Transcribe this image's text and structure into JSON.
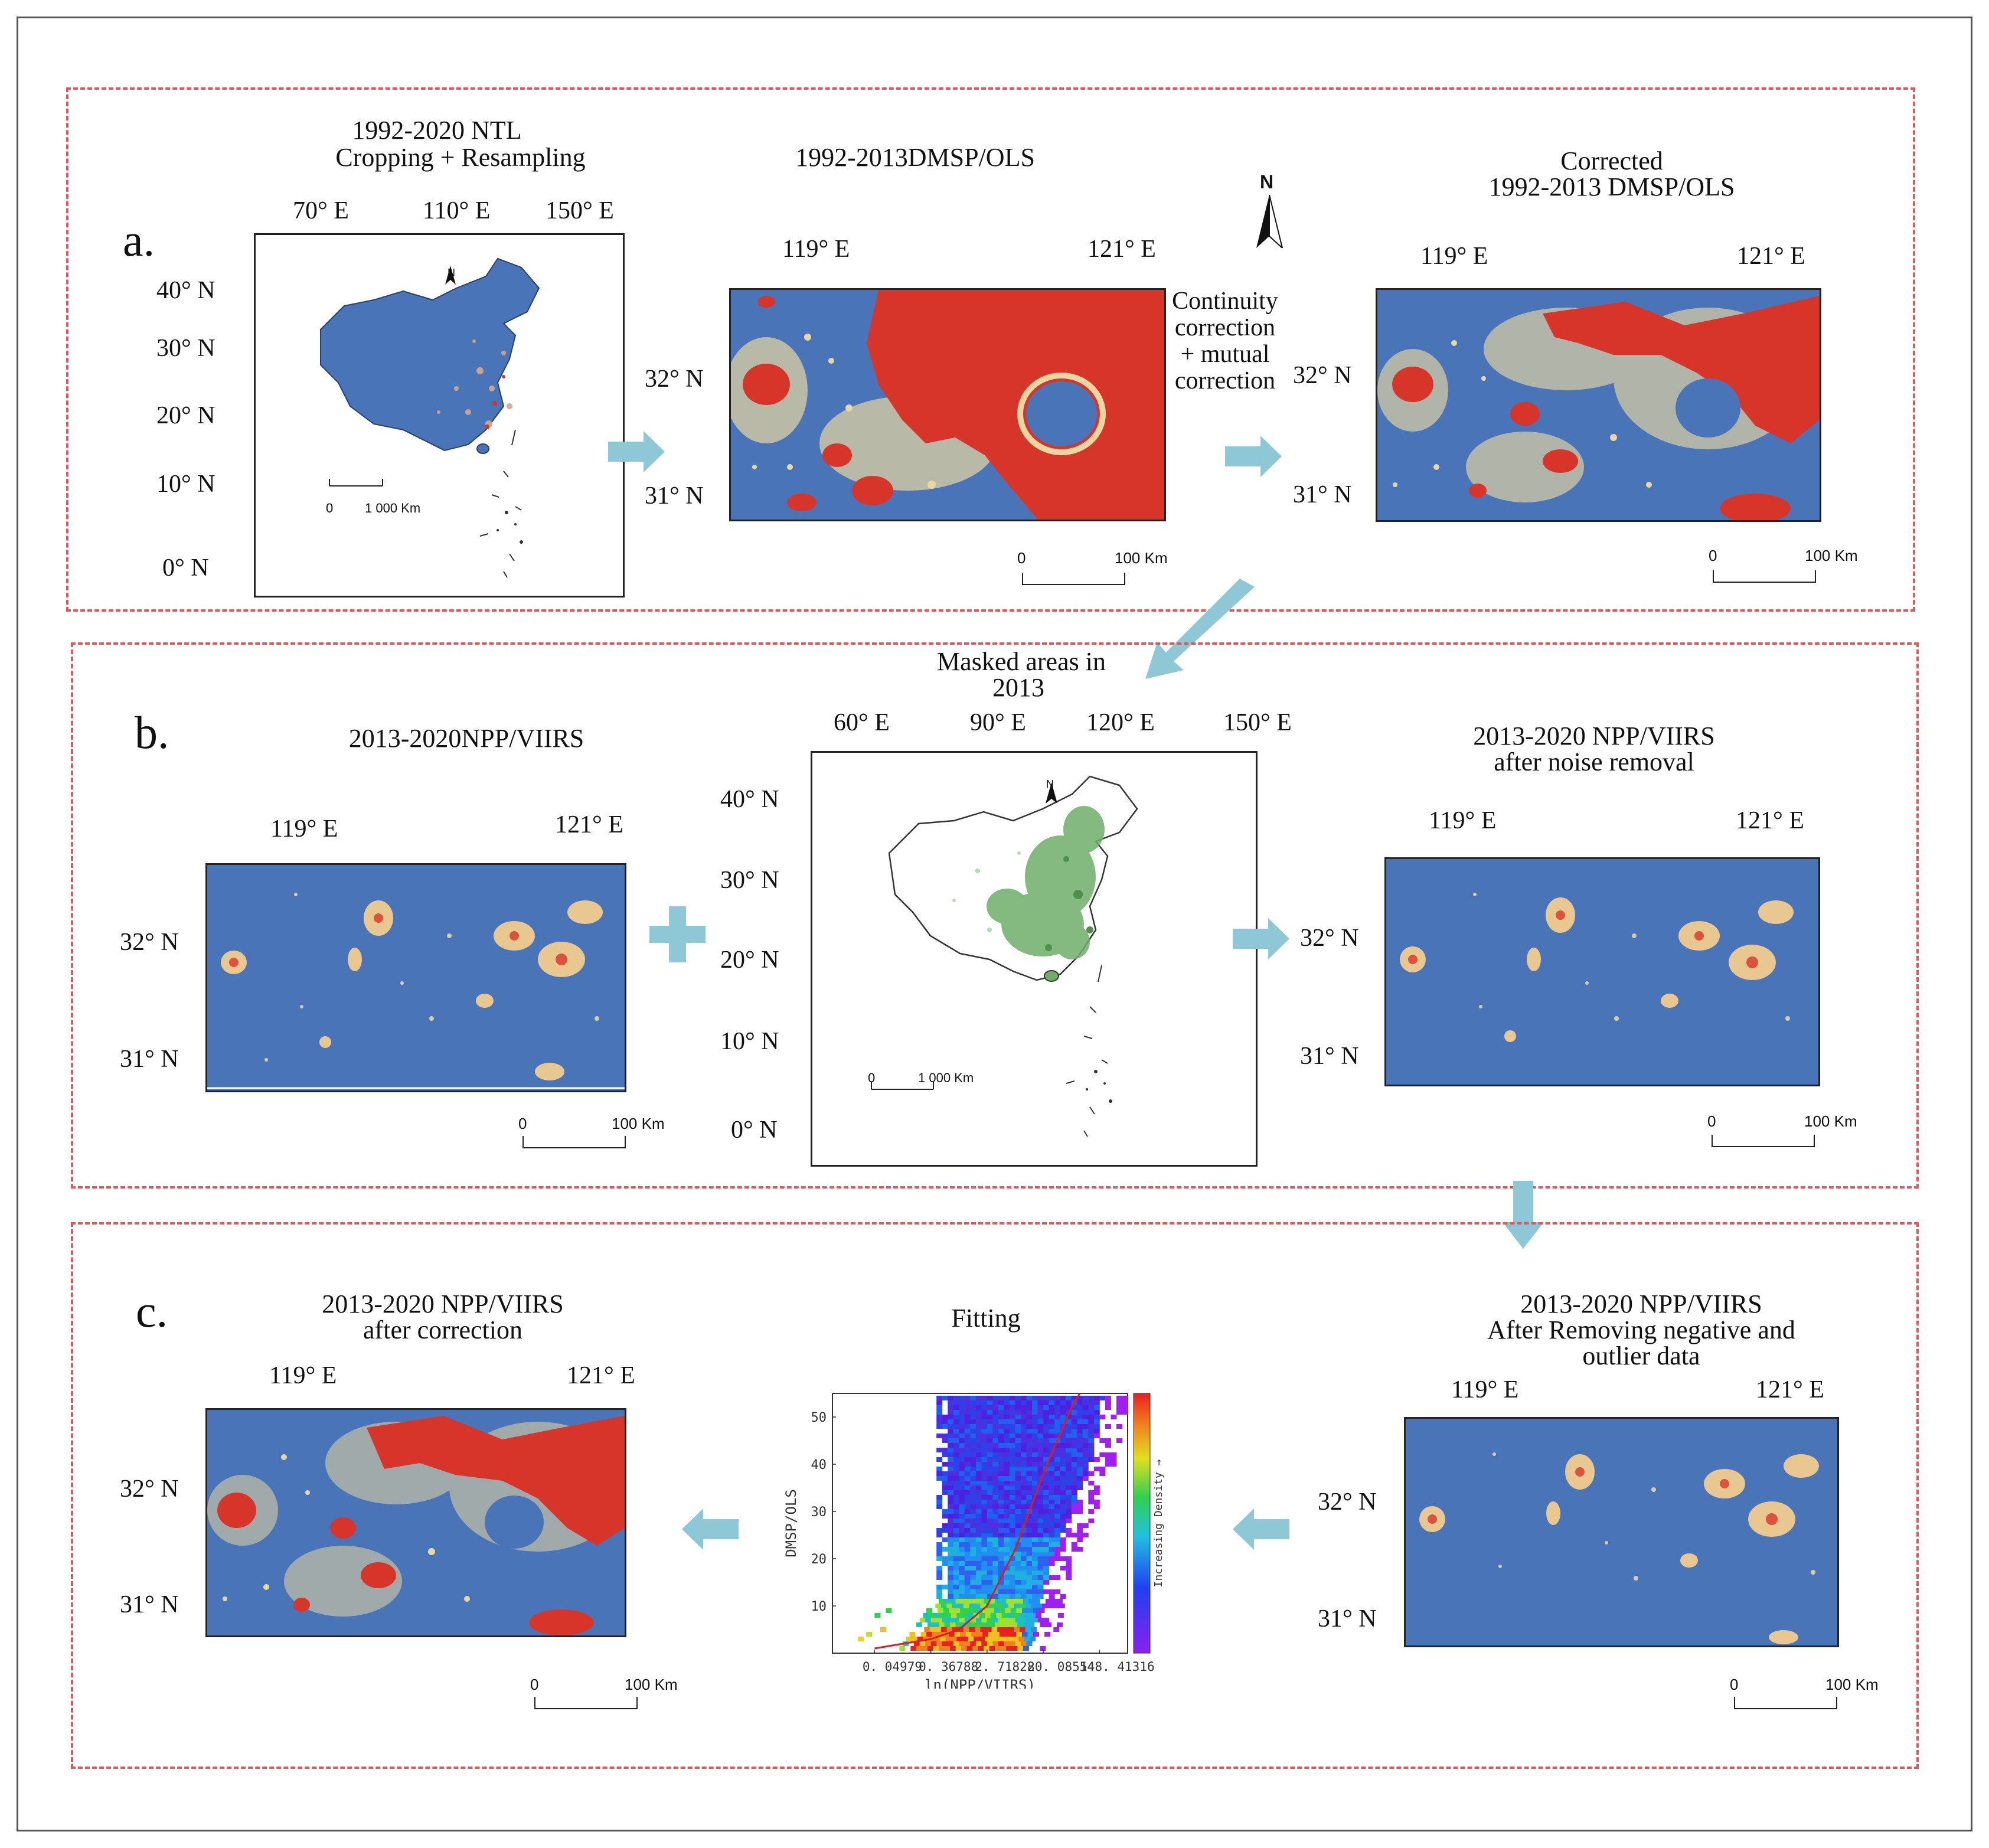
{
  "panel_a": {
    "letter": "a.",
    "ntl": {
      "title_line1": "1992-2020 NTL",
      "title_line2": "Cropping + Resampling",
      "lon_ticks": [
        "70° E",
        "110° E",
        "150° E"
      ],
      "lat_ticks": [
        "40° N",
        "30° N",
        "20° N",
        "10° N",
        "0° N"
      ],
      "scale_0": "0",
      "scale_km": "1 000 Km",
      "north": "N"
    },
    "dmsp": {
      "title": "1992-2013DMSP/OLS",
      "lon_ticks": [
        "119° E",
        "121° E"
      ],
      "lat_ticks": [
        "32° N",
        "31° N"
      ],
      "scale_0": "0",
      "scale_km": "100 Km"
    },
    "correction_text": [
      "Continuity",
      "correction",
      "+ mutual",
      "correction"
    ],
    "north": "N",
    "corrected": {
      "title_line1": "Corrected",
      "title_line2": "1992-2013 DMSP/OLS",
      "lon_ticks": [
        "119° E",
        "121° E"
      ],
      "lat_ticks": [
        "32° N",
        "31° N"
      ],
      "scale_0": "0",
      "scale_km": "100 Km"
    }
  },
  "panel_b": {
    "letter": "b.",
    "viirs": {
      "title": "2013-2020NPP/VIIRS",
      "lon_ticks": [
        "119° E",
        "121° E"
      ],
      "lat_ticks": [
        "32° N",
        "31° N"
      ],
      "scale_0": "0",
      "scale_km": "100 Km"
    },
    "masked": {
      "title_line1": "Masked areas in",
      "title_line2": "2013",
      "lon_ticks": [
        "60° E",
        "90° E",
        "120° E",
        "150° E"
      ],
      "lat_ticks": [
        "40° N",
        "30° N",
        "20° N",
        "10° N",
        "0° N"
      ],
      "scale_0": "0",
      "scale_km": "1 000 Km",
      "north": "N"
    },
    "denoised": {
      "title_line1": "2013-2020 NPP/VIIRS",
      "title_line2": "after noise removal",
      "lon_ticks": [
        "119° E",
        "121° E"
      ],
      "lat_ticks": [
        "32° N",
        "31° N"
      ],
      "scale_0": "0",
      "scale_km": "100 Km"
    }
  },
  "panel_c": {
    "letter": "c.",
    "corrected": {
      "title_line1": "2013-2020 NPP/VIIRS",
      "title_line2": "after correction",
      "lon_ticks": [
        "119° E",
        "121° E"
      ],
      "lat_ticks": [
        "32° N",
        "31° N"
      ],
      "scale_0": "0",
      "scale_km": "100 Km"
    },
    "fitting": {
      "title": "Fitting"
    },
    "removed": {
      "title_line1": "2013-2020 NPP/VIIRS",
      "title_line2": "After Removing negative and",
      "title_line3": "outlier data",
      "lon_ticks": [
        "119° E",
        "121° E"
      ],
      "lat_ticks": [
        "32° N",
        "31° N"
      ],
      "scale_0": "0",
      "scale_km": "100 Km"
    }
  },
  "chart_data": {
    "type": "scatter",
    "title": "Fitting",
    "xlabel": "ln(NPP/VIIRS)",
    "ylabel": "DMSP/OLS",
    "x_tick_labels": [
      "0. 04979",
      "0. 36788",
      "2. 71828",
      "20. 08554",
      "148. 41316"
    ],
    "x_ticks_ln": [
      -3,
      -1,
      1,
      3,
      5
    ],
    "y_ticks": [
      10,
      20,
      30,
      40,
      50
    ],
    "ylim": [
      0,
      55
    ],
    "xlim_ln": [
      -4.5,
      6
    ],
    "colorbar_label": "Increasing Density →",
    "density_bands": [
      {
        "x_range": [
          -2.0,
          2.5
        ],
        "y_range": [
          2,
          6
        ],
        "density": "high"
      },
      {
        "x_range": [
          -1.5,
          2.5
        ],
        "y_range": [
          6,
          12
        ],
        "density": "medium"
      },
      {
        "x_range": [
          -0.8,
          3.5
        ],
        "y_range": [
          12,
          55
        ],
        "density": "low"
      }
    ],
    "fit_curve": [
      [
        -3.0,
        1
      ],
      [
        -1.0,
        3
      ],
      [
        0.0,
        5
      ],
      [
        1.0,
        10
      ],
      [
        2.0,
        22
      ],
      [
        3.0,
        38
      ],
      [
        4.0,
        52
      ],
      [
        4.3,
        55
      ]
    ],
    "series": [
      {
        "name": "fit",
        "color": "#d42020"
      }
    ]
  },
  "colors": {
    "panel_border": "#e0585b",
    "arrow": "#8ec7d6",
    "map_blue": "#4a74b8",
    "map_red": "#d8352a",
    "mask_green": "#6fae6a"
  }
}
